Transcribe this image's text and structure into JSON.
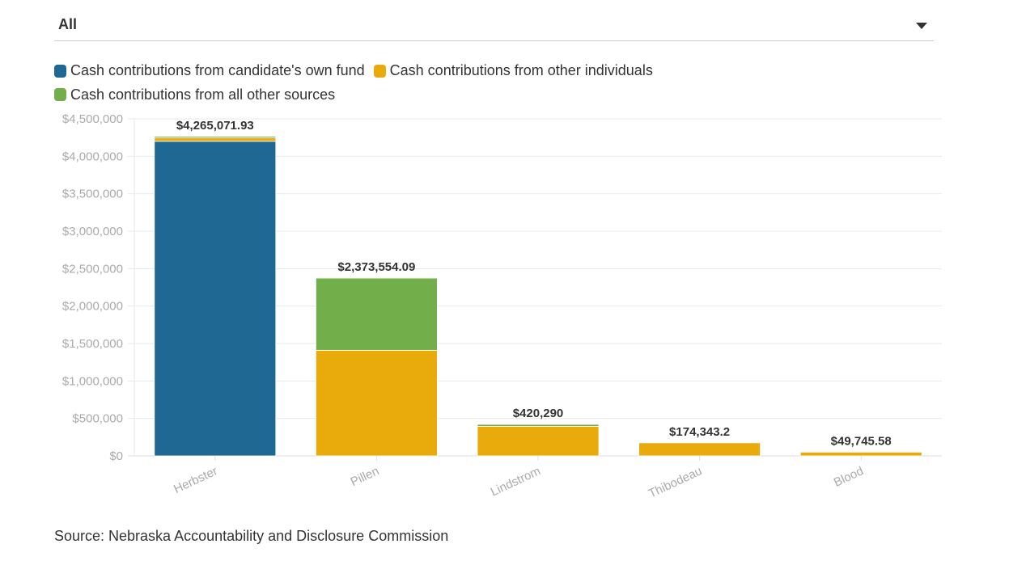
{
  "filter": {
    "selected": "All",
    "icon": "chevron-down-icon"
  },
  "source": "Source: Nebraska Accountability and Disclosure Commission",
  "chart_data": {
    "type": "bar",
    "stacked": true,
    "categories": [
      "Herbster",
      "Pillen",
      "Lindstrom",
      "Thibodeau",
      "Blood"
    ],
    "series": [
      {
        "name": "Cash contributions from candidate's own fund",
        "color": "#1f6894",
        "values": [
          4200000,
          0,
          0,
          0,
          0
        ]
      },
      {
        "name": "Cash contributions from other individuals",
        "color": "#e9ab0c",
        "values": [
          45000,
          1410000,
          395000,
          174343.2,
          49745.58
        ]
      },
      {
        "name": "Cash contributions from all other sources",
        "color": "#72ae4a",
        "values": [
          20071.93,
          963554.09,
          25290,
          0,
          0
        ]
      }
    ],
    "totals": [
      4265071.93,
      2373554.09,
      420290,
      174343.2,
      49745.58
    ],
    "total_labels": [
      "$4,265,071.93",
      "$2,373,554.09",
      "$420,290",
      "$174,343.2",
      "$49,745.58"
    ],
    "ylim": [
      0,
      4500000
    ],
    "yticks": [
      0,
      500000,
      1000000,
      1500000,
      2000000,
      2500000,
      3000000,
      3500000,
      4000000,
      4500000
    ],
    "ytick_labels": [
      "$0",
      "$500,000",
      "$1,000,000",
      "$1,500,000",
      "$2,000,000",
      "$2,500,000",
      "$3,000,000",
      "$3,500,000",
      "$4,000,000",
      "$4,500,000"
    ],
    "xlabel": "",
    "ylabel": "",
    "grid": true,
    "legend_position": "top-left"
  }
}
